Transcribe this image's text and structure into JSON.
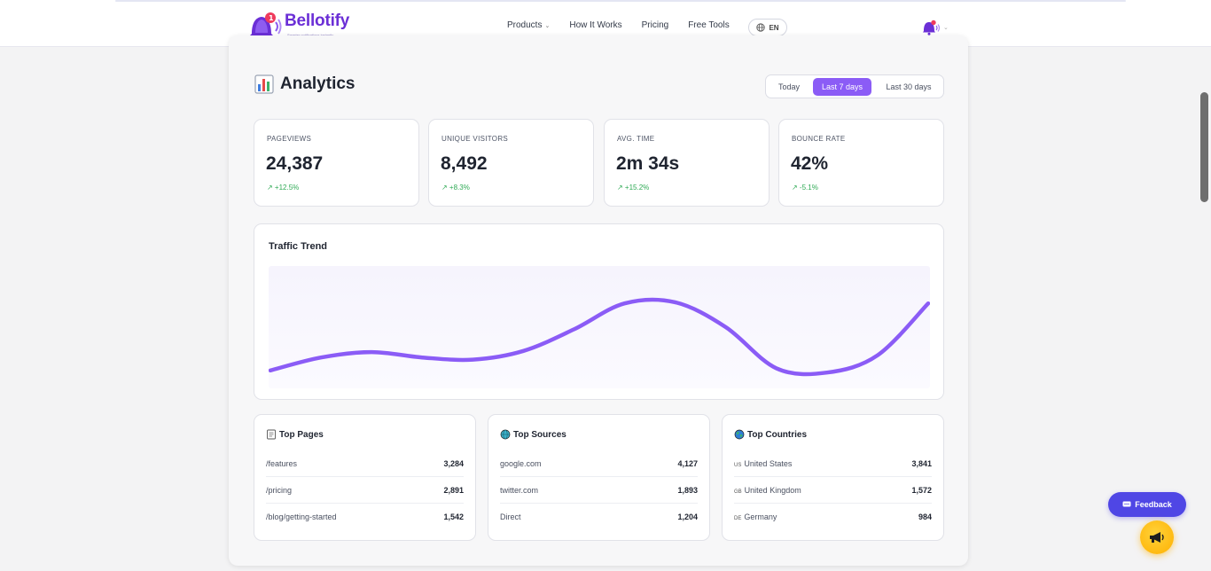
{
  "brand": {
    "name": "Bellotify",
    "tagline": "Smarter notifications instantly",
    "accent": "#8b5cf6",
    "logo_color": "#6b2fd6"
  },
  "nav": {
    "links": [
      {
        "label": "Products",
        "has_dropdown": true
      },
      {
        "label": "How It Works"
      },
      {
        "label": "Pricing"
      },
      {
        "label": "Free Tools"
      }
    ],
    "language": "EN",
    "icons": [
      "globe-icon",
      "bell-icon",
      "chevron-down-icon"
    ]
  },
  "analytics": {
    "title": "Analytics",
    "title_icon": "bar-chart-icon",
    "ranges": [
      {
        "label": "Today",
        "active": false
      },
      {
        "label": "Last 7 days",
        "active": true
      },
      {
        "label": "Last 30 days",
        "active": false
      }
    ],
    "stats": [
      {
        "label": "PAGEVIEWS",
        "value": "24,387",
        "change": "↗ +12.5%"
      },
      {
        "label": "UNIQUE VISITORS",
        "value": "8,492",
        "change": "↗ +8.3%"
      },
      {
        "label": "AVG. TIME",
        "value": "2m 34s",
        "change": "↗ +15.2%"
      },
      {
        "label": "BOUNCE RATE",
        "value": "42%",
        "change": "↗ -5.1%"
      }
    ],
    "positive_color": "#2faa55"
  },
  "chart_data": {
    "type": "line",
    "title": "Traffic Trend",
    "series": [
      {
        "values": [
          10,
          22,
          27,
          22,
          20,
          28,
          48,
          72,
          73,
          50,
          12,
          8,
          24,
          72
        ]
      }
    ],
    "ylim": [
      0,
      100
    ],
    "grid": false,
    "color": "#8b5cf6"
  },
  "top_pages": {
    "title": "Top Pages",
    "icon": "document-icon",
    "rows": [
      {
        "name": "/features",
        "value": "3,284"
      },
      {
        "name": "/pricing",
        "value": "2,891"
      },
      {
        "name": "/blog/getting-started",
        "value": "1,542"
      }
    ]
  },
  "top_sources": {
    "title": "Top Sources",
    "icon": "globe-icon",
    "rows": [
      {
        "name": "google.com",
        "value": "4,127"
      },
      {
        "name": "twitter.com",
        "value": "1,893"
      },
      {
        "name": "Direct",
        "value": "1,204"
      }
    ]
  },
  "top_countries": {
    "title": "Top Countries",
    "icon": "earth-icon",
    "rows": [
      {
        "code": "US",
        "name": "United States",
        "value": "3,841"
      },
      {
        "code": "GB",
        "name": "United Kingdom",
        "value": "1,572"
      },
      {
        "code": "DE",
        "name": "Germany",
        "value": "984"
      }
    ]
  },
  "feedback": {
    "label": "Feedback",
    "color": "#4f46e5"
  },
  "megaphone": {
    "icon": "megaphone-icon",
    "color": "#ffb000"
  }
}
